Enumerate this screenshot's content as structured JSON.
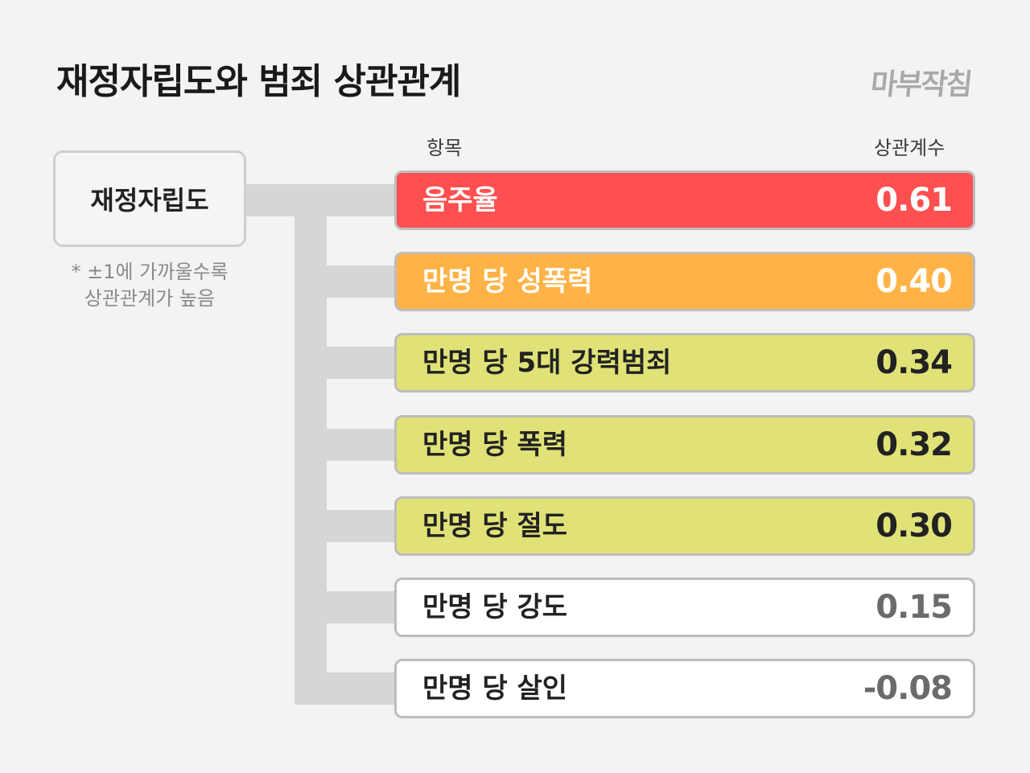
{
  "header": {
    "title": "재정자립도와 범죄 상관관계",
    "logo_text": "마부작침"
  },
  "columns": {
    "item": "항목",
    "coefficient": "상관계수"
  },
  "source_node": {
    "label": "재정자립도"
  },
  "note": {
    "line1": "* ±1에 가까울수록",
    "line2": "상관관계가 높음"
  },
  "colors": {
    "red": "#fe5050",
    "orange": "#ffb347",
    "yellow": "#e0e277",
    "white": "#ffffff",
    "connector": "#d6d6d6"
  },
  "chart_data": {
    "type": "table",
    "title": "재정자립도와 범죄 상관관계",
    "columns": [
      "항목",
      "상관계수"
    ],
    "rows": [
      {
        "label": "음주율",
        "value": 0.61,
        "display": "0.61",
        "color": "#fe5050",
        "text_color": "#ffffff"
      },
      {
        "label": "만명 당 성폭력",
        "value": 0.4,
        "display": "0.40",
        "color": "#ffb347",
        "text_color": "#ffffff"
      },
      {
        "label": "만명 당 5대 강력범죄",
        "value": 0.34,
        "display": "0.34",
        "color": "#e0e277",
        "text_color": "#222222"
      },
      {
        "label": "만명 당 폭력",
        "value": 0.32,
        "display": "0.32",
        "color": "#e0e277",
        "text_color": "#222222"
      },
      {
        "label": "만명 당 절도",
        "value": 0.3,
        "display": "0.30",
        "color": "#e0e277",
        "text_color": "#222222"
      },
      {
        "label": "만명 당 강도",
        "value": 0.15,
        "display": "0.15",
        "color": "#ffffff",
        "text_color": "#6b6b6b",
        "label_color": "#222222"
      },
      {
        "label": "만명 당 살인",
        "value": -0.08,
        "display": "-0.08",
        "color": "#ffffff",
        "text_color": "#6b6b6b",
        "label_color": "#222222"
      }
    ]
  }
}
